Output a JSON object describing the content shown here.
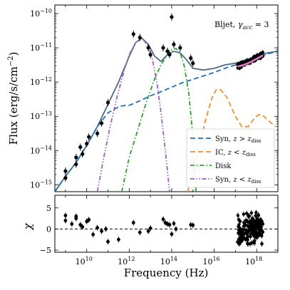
{
  "chart_data": [
    {
      "type": "scatter",
      "panel": "sed",
      "annotation": "Bljet, γ_acc = 3",
      "annotation_parts": {
        "name": "Bljet, ",
        "symbol": "γ",
        "sub": "acc",
        "rest": " = 3"
      },
      "ylabel": "Flux (erg/s/cm",
      "ylabel_sup": "−2",
      "ylabel_close": ")",
      "xscale": "log",
      "yscale": "log",
      "xlim_log10": [
        8.5,
        19.0
      ],
      "ylim_log10": [
        -15.2,
        -9.75
      ],
      "x_ticks": [
        {
          "label": "10",
          "exp": "10",
          "log": 10
        },
        {
          "label": "10",
          "exp": "12",
          "log": 12
        },
        {
          "label": "10",
          "exp": "14",
          "log": 14
        },
        {
          "label": "10",
          "exp": "16",
          "log": 16
        },
        {
          "label": "10",
          "exp": "18",
          "log": 18
        }
      ],
      "y_ticks": [
        {
          "label": "10",
          "exp": "−15",
          "log": -15
        },
        {
          "label": "10",
          "exp": "−14",
          "log": -14
        },
        {
          "label": "10",
          "exp": "−13",
          "log": -13
        },
        {
          "label": "10",
          "exp": "−12",
          "log": -12
        },
        {
          "label": "10",
          "exp": "−11",
          "log": -11
        },
        {
          "label": "10",
          "exp": "−10",
          "log": -10
        }
      ],
      "legend": {
        "placement": "lower-right",
        "entries": [
          {
            "key": "syn_far",
            "label_main": "Syn, ",
            "label_sym": "z > z",
            "label_sub": "diss"
          },
          {
            "key": "ic",
            "label_main": "IC, ",
            "label_sym": "z < z",
            "label_sub": "diss"
          },
          {
            "key": "disk",
            "label_main": "Disk",
            "label_sym": "",
            "label_sub": ""
          },
          {
            "key": "syn_near",
            "label_main": "Syn, ",
            "label_sym": "z < z",
            "label_sub": "diss"
          }
        ]
      },
      "series": [
        {
          "key": "total",
          "color": "#4d6d80",
          "style": "solid",
          "x": [
            8.5,
            9.0,
            9.5,
            10.0,
            10.5,
            11.0,
            11.5,
            12.0,
            12.3,
            12.6,
            12.9,
            13.2,
            13.5,
            13.8,
            14.1,
            14.4,
            14.7,
            15.0,
            15.5,
            16.0,
            16.5,
            17.0,
            17.5,
            18.0,
            18.5,
            19.0
          ],
          "y": [
            -15.2,
            -14.75,
            -14.35,
            -13.85,
            -13.3,
            -12.65,
            -12.0,
            -11.25,
            -10.85,
            -10.72,
            -10.9,
            -11.25,
            -11.4,
            -11.2,
            -11.1,
            -11.15,
            -11.35,
            -11.6,
            -11.65,
            -11.6,
            -11.5,
            -11.45,
            -11.35,
            -11.25,
            -11.15,
            -11.1
          ]
        },
        {
          "key": "syn_far",
          "color": "#1f6fb4",
          "style": "dashed",
          "x": [
            8.5,
            9.0,
            9.5,
            10.0,
            10.5,
            11.0,
            11.5,
            11.8,
            12.0,
            12.5,
            13.0,
            13.5,
            14.0,
            14.5,
            15.0,
            15.5,
            16.0,
            16.5,
            17.0,
            17.5,
            18.0,
            18.5,
            19.0
          ],
          "y": [
            -15.2,
            -14.75,
            -14.35,
            -13.85,
            -13.3,
            -12.9,
            -12.72,
            -12.68,
            -12.68,
            -12.55,
            -12.4,
            -12.28,
            -12.15,
            -12.02,
            -11.92,
            -11.82,
            -11.72,
            -11.6,
            -11.5,
            -11.4,
            -11.28,
            -11.18,
            -11.1
          ]
        },
        {
          "key": "ic",
          "color": "#f28e2b",
          "style": "dashed",
          "x": [
            14.75,
            15.0,
            15.3,
            15.6,
            15.9,
            16.1,
            16.3,
            16.6,
            17.0,
            17.3,
            17.6,
            17.9,
            18.1,
            18.3,
            18.6,
            18.9
          ],
          "y": [
            -15.2,
            -14.65,
            -13.9,
            -13.1,
            -12.45,
            -12.22,
            -12.22,
            -12.45,
            -13.0,
            -13.3,
            -13.3,
            -13.05,
            -12.95,
            -12.98,
            -13.15,
            -13.3
          ]
        },
        {
          "key": "disk",
          "color": "#2ca02c",
          "style": "dashdot",
          "x": [
            11.65,
            12.0,
            12.4,
            12.8,
            13.2,
            13.5,
            13.8,
            14.0,
            14.2,
            14.4,
            14.6,
            14.8,
            15.0,
            15.15
          ],
          "y": [
            -15.2,
            -14.2,
            -13.4,
            -12.6,
            -11.9,
            -11.5,
            -11.2,
            -11.05,
            -11.02,
            -11.15,
            -11.55,
            -12.3,
            -13.6,
            -15.2
          ]
        },
        {
          "key": "syn_near",
          "color": "#9a5fc0",
          "style": "dashdotdot",
          "x": [
            10.5,
            10.8,
            11.1,
            11.4,
            11.7,
            12.0,
            12.3,
            12.6,
            12.9,
            13.1,
            13.3,
            13.5,
            13.7,
            13.9
          ],
          "y": [
            -15.2,
            -14.2,
            -13.3,
            -12.5,
            -11.8,
            -11.2,
            -10.85,
            -10.72,
            -10.95,
            -11.35,
            -12.0,
            -12.9,
            -14.0,
            -15.2
          ]
        },
        {
          "key": "xray_model",
          "color": "#e377c2",
          "style": "solid",
          "x": [
            17.1,
            17.4,
            17.7,
            18.0,
            18.3
          ],
          "y": [
            -11.55,
            -11.5,
            -11.42,
            -11.32,
            -11.22
          ]
        }
      ],
      "data_points": {
        "x": [
          9.0,
          9.0,
          9.5,
          9.5,
          9.7,
          9.8,
          10.0,
          10.1,
          10.5,
          10.7,
          11.0,
          12.2,
          12.5,
          12.9,
          13.0,
          13.6,
          13.8,
          13.9,
          14.0,
          14.1,
          14.4,
          14.9,
          15.0
        ],
        "y": [
          -14.6,
          -14.8,
          -14.2,
          -14.4,
          -13.9,
          -14.1,
          -13.8,
          -13.6,
          -13.5,
          -13.2,
          -12.6,
          -10.6,
          -10.7,
          -11.0,
          -11.2,
          -11.0,
          -11.1,
          -11.2,
          -10.1,
          -10.9,
          -11.0,
          -11.3,
          -11.45
        ],
        "xray_cluster": {
          "x_range": [
            17.1,
            18.3
          ],
          "y_range": [
            -11.6,
            -11.1
          ]
        }
      }
    },
    {
      "type": "scatter",
      "panel": "residuals",
      "ylabel": "χ",
      "xlabel": "Frequency (Hz)",
      "xlim_log10": [
        8.5,
        19.0
      ],
      "ylim": [
        -5.5,
        8
      ],
      "y_ticks": [
        {
          "label": "5",
          "value": 5
        },
        {
          "label": "0",
          "value": 0
        },
        {
          "label": "−5",
          "value": -5
        }
      ],
      "zero_line": "dashed",
      "points": {
        "x": [
          9.0,
          9.0,
          9.3,
          9.5,
          9.5,
          9.7,
          9.8,
          10.0,
          10.1,
          10.3,
          10.5,
          10.7,
          10.9,
          11.0,
          11.5,
          12.2,
          12.5,
          12.9,
          13.0,
          13.6,
          13.7,
          13.8,
          13.9,
          14.0,
          14.1,
          14.2,
          14.9,
          15.0
        ],
        "y": [
          2.0,
          3.2,
          1.2,
          2.5,
          3.0,
          1.0,
          0.5,
          1.8,
          2.2,
          -1.3,
          0.3,
          -0.5,
          0.0,
          -3.0,
          -2.5,
          1.5,
          -0.8,
          -0.5,
          0.2,
          2.3,
          1.5,
          1.2,
          1.0,
          -1.2,
          1.3,
          0.0,
          1.0,
          0.9
        ],
        "xray_cluster": {
          "x_range": [
            17.1,
            18.3
          ],
          "y_range": [
            -3.5,
            5.5
          ]
        }
      }
    }
  ]
}
